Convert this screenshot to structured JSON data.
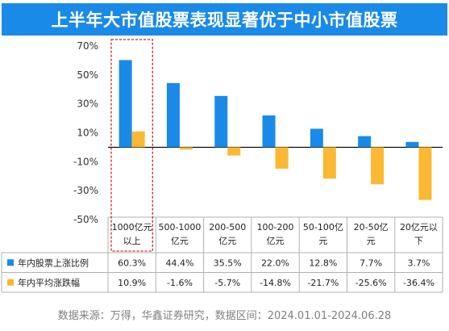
{
  "title": "上半年大市值股票表现显著优于中小市值股票",
  "source": "数据来源：万得，华鑫证券研究，数据区间：2024.01.01-2024.06.28",
  "colors": {
    "series1": "#1a8ae8",
    "series2": "#fbb832",
    "highlight": "#c0272d",
    "title_bg": "#1a8ae8"
  },
  "chart_data": {
    "type": "bar",
    "title": "上半年大市值股票表现显著优于中小市值股票",
    "categories": [
      [
        "1000亿元",
        "以上"
      ],
      [
        "500-1000",
        "亿元"
      ],
      [
        "200-500",
        "亿元"
      ],
      [
        "100-200",
        "亿元"
      ],
      [
        "50-100亿",
        "元"
      ],
      [
        "20-50亿",
        "元"
      ],
      [
        "20亿元以",
        "下"
      ]
    ],
    "series": [
      {
        "name": "年内股票上涨比例",
        "values": [
          60.3,
          44.4,
          35.5,
          22.0,
          12.8,
          7.7,
          3.7
        ],
        "labels": [
          "60.3%",
          "44.4%",
          "35.5%",
          "22.0%",
          "12.8%",
          "7.7%",
          "3.7%"
        ]
      },
      {
        "name": "年内平均涨跌幅",
        "values": [
          10.9,
          -1.6,
          -5.7,
          -14.8,
          -21.7,
          -25.6,
          -36.4
        ],
        "labels": [
          "10.9%",
          "-1.6%",
          "-5.7%",
          "-14.8%",
          "-21.7%",
          "-25.6%",
          "-36.4%"
        ]
      }
    ],
    "ylim": [
      -50,
      70
    ],
    "yticks": [
      70,
      50,
      30,
      10,
      -10,
      -30,
      -50
    ],
    "ytick_labels": [
      "70%",
      "50%",
      "30%",
      "10%",
      "-10%",
      "-30%",
      "-50%"
    ],
    "data_table": true,
    "highlight_category": 0
  }
}
